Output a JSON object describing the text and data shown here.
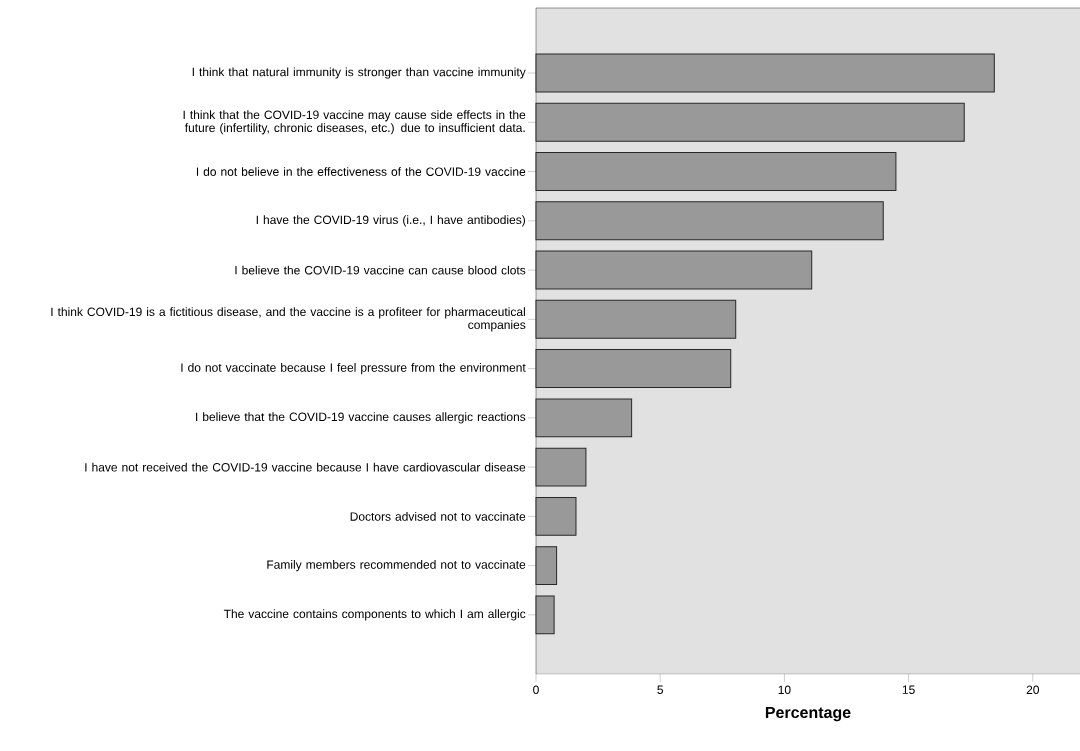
{
  "chart_data": {
    "type": "bar",
    "orientation": "horizontal",
    "xlabel": "Percentage",
    "categories": [
      "I think that natural immunity is stronger than vaccine immunity",
      "I think that the COVID-19 vaccine may cause side effects in the future (infertility, chronic diseases, etc.) due to insufficient data.",
      "I do not believe in the effectiveness of the COVID-19 vaccine",
      "I have the COVID-19 virus (i.e., I have antibodies)",
      "I believe the COVID-19 vaccine can cause blood clots",
      "I think COVID-19 is a fictitious disease, and the vaccine is a profiteer for pharmaceutical companies",
      "I do not vaccinate because I feel pressure from the environment",
      "I believe that the COVID-19 vaccine causes allergic reactions",
      "I have not received the COVID-19 vaccine because I have cardiovascular disease",
      "Doctors advised not to vaccinate",
      "Family members recommended not to vaccinate",
      "The vaccine contains components to which I am allergic"
    ],
    "values": [
      18.45,
      17.24,
      14.49,
      13.98,
      11.1,
      8.04,
      7.84,
      3.85,
      2.01,
      1.61,
      0.83,
      0.73
    ],
    "color": "#999999",
    "xlim": [
      0,
      21.9
    ],
    "xticks": [
      0,
      5,
      10,
      15,
      20
    ]
  }
}
